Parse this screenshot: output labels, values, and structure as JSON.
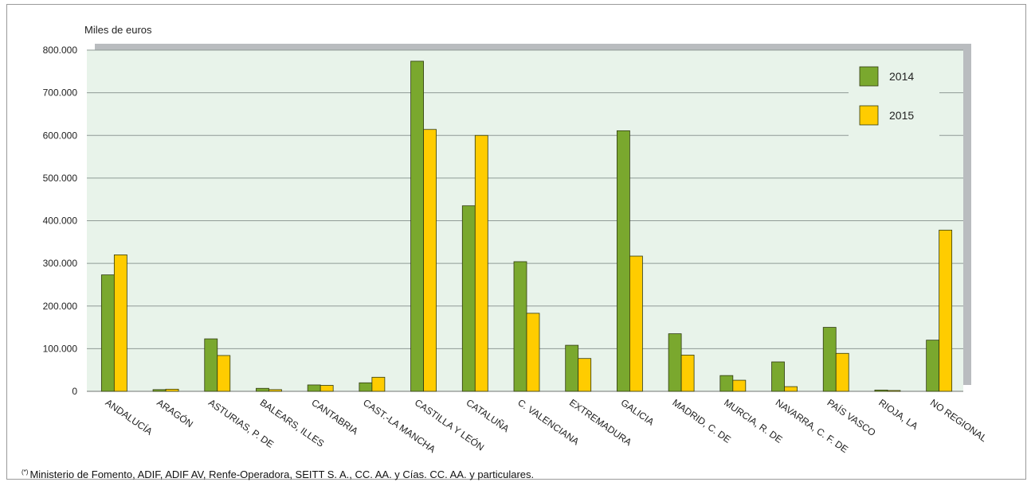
{
  "chart_data": {
    "type": "bar",
    "unit_label": "Miles de euros",
    "categories": [
      "ANDALUCÍA",
      "ARAGÓN",
      "ASTURIAS, P. DE",
      "BALEARS, ILLES",
      "CANTABRIA",
      "CAST.-LA MANCHA",
      "CASTILLA Y LEÓN",
      "CATALUÑA",
      "C. VALENCIANA",
      "EXTREMADURA",
      "GALICIA",
      "MADRID, C. DE",
      "MURCIA, R. DE",
      "NAVARRA, C. F. DE",
      "PAÍS VASCO",
      "RIOJA, LA",
      "NO REGIONAL"
    ],
    "series": [
      {
        "name": "2014",
        "color": "#7aa82e",
        "values": [
          273000,
          4000,
          123000,
          7000,
          15000,
          20000,
          774000,
          435000,
          304000,
          108000,
          611000,
          135000,
          37000,
          69000,
          150000,
          3000,
          120000
        ]
      },
      {
        "name": "2015",
        "color": "#ffcc00",
        "values": [
          320000,
          5000,
          84000,
          4000,
          14000,
          33000,
          614000,
          600000,
          183000,
          77000,
          317000,
          85000,
          26000,
          11000,
          89000,
          2000,
          378000
        ]
      }
    ],
    "ylim": [
      0,
      800000
    ],
    "yticks": [
      0,
      100000,
      200000,
      300000,
      400000,
      500000,
      600000,
      700000,
      800000
    ],
    "ytick_labels": [
      "0",
      "100.000",
      "200.000",
      "300.000",
      "400.000",
      "500.000",
      "600.000",
      "700.000",
      "800.000"
    ],
    "grid": true,
    "legend_position": "top-right",
    "plot_background": "#e8f3ea"
  },
  "footnote": {
    "marker": "(*)",
    "text": "Ministerio de Fomento, ADIF, ADIF AV, Renfe-Operadora, SEITT S. A., CC. AA. y Cías. CC. AA. y particulares."
  }
}
